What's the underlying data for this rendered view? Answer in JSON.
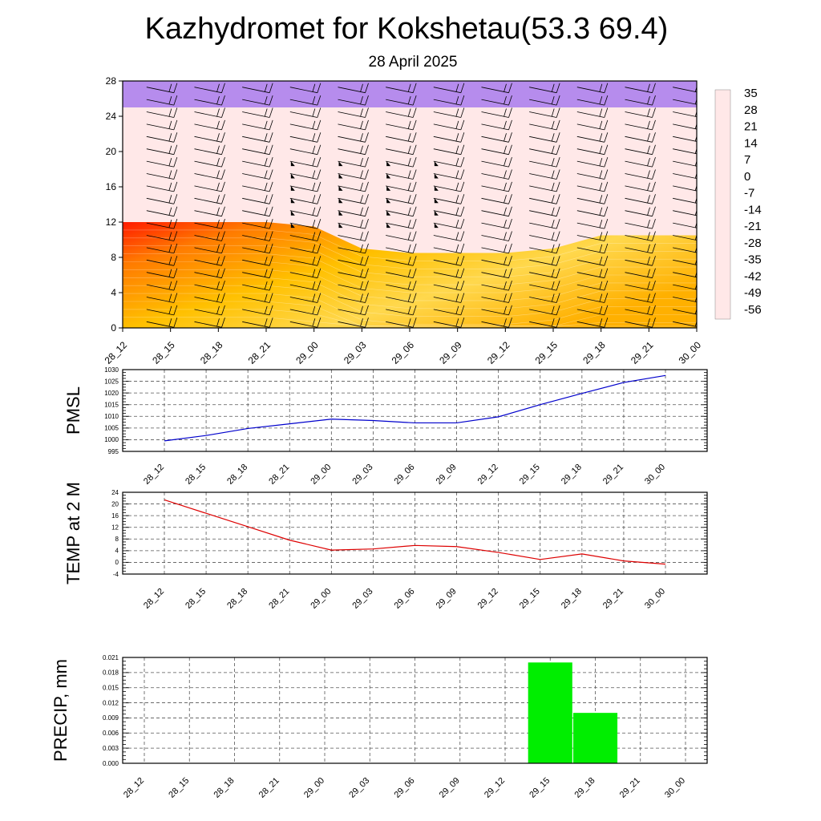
{
  "header": {
    "title": "Kazhydromet for Kokshetau(53.3 69.4)",
    "subtitle": "28 April 2025"
  },
  "time_labels": [
    "28_12",
    "28_15",
    "28_18",
    "28_21",
    "29_00",
    "29_03",
    "29_06",
    "29_09",
    "29_12",
    "29_15",
    "29_18",
    "29_21",
    "30_00"
  ],
  "colors": {
    "pmsl_line": "#0000cc",
    "temp_line": "#dd0000",
    "precip_bar": "#00ee00",
    "grid": "#555555"
  },
  "chart_data": [
    {
      "type": "heatmap",
      "name": "cross-section",
      "y_ticks": [
        "0",
        "4",
        "8",
        "12",
        "16",
        "20",
        "24",
        "28"
      ],
      "ylim": [
        0,
        28
      ],
      "x": [
        "28_12",
        "28_15",
        "28_18",
        "28_21",
        "29_00",
        "29_03",
        "29_06",
        "29_09",
        "29_12",
        "29_15",
        "29_18",
        "29_21",
        "30_00"
      ],
      "freezing_level": [
        12,
        12,
        12,
        12,
        11.5,
        9,
        8.5,
        8.5,
        8.5,
        9,
        10.5,
        10.5,
        10.5
      ],
      "colorbar_labels": [
        "35",
        "28",
        "21",
        "14",
        "7",
        "0",
        "-7",
        "-14",
        "-21",
        "-28",
        "-35",
        "-42",
        "-49",
        "-56"
      ],
      "colorbar_range": [
        -63,
        42
      ]
    },
    {
      "type": "line",
      "ylabel": "PMSL",
      "x": [
        "28_12",
        "28_15",
        "28_18",
        "28_21",
        "29_00",
        "29_03",
        "29_06",
        "29_09",
        "29_12",
        "29_15",
        "29_18",
        "29_21",
        "30_00"
      ],
      "values": [
        999.5,
        1001.8,
        1004.8,
        1006.8,
        1008.8,
        1008.2,
        1007.2,
        1007.2,
        1009.8,
        1015.0,
        1019.8,
        1024.5,
        1027.5
      ],
      "y_ticks": [
        "995",
        "1000",
        "1005",
        "1010",
        "1015",
        "1020",
        "1025",
        "1030"
      ],
      "ylim": [
        995,
        1030
      ]
    },
    {
      "type": "line",
      "ylabel": "TEMP at 2 M",
      "x": [
        "28_12",
        "28_15",
        "28_18",
        "28_21",
        "29_00",
        "29_03",
        "29_06",
        "29_09",
        "29_12",
        "29_15",
        "29_18",
        "29_21",
        "30_00"
      ],
      "values": [
        21.4,
        16.8,
        12.2,
        7.6,
        4.2,
        4.6,
        5.8,
        5.4,
        3.4,
        1.0,
        2.9,
        0.5,
        -0.6
      ],
      "y_ticks": [
        "-4",
        "0",
        "4",
        "8",
        "12",
        "16",
        "20",
        "24"
      ],
      "ylim": [
        -4,
        24
      ]
    },
    {
      "type": "bar",
      "ylabel": "PRECIP, mm",
      "categories": [
        "28_12",
        "28_15",
        "28_18",
        "28_21",
        "29_00",
        "29_03",
        "29_06",
        "29_09",
        "29_12",
        "29_15",
        "29_18",
        "29_21",
        "30_00"
      ],
      "values": [
        0,
        0,
        0,
        0,
        0,
        0,
        0,
        0,
        0,
        0.02,
        0.01,
        0,
        0
      ],
      "y_ticks": [
        "0.000",
        "0.003",
        "0.006",
        "0.009",
        "0.012",
        "0.015",
        "0.018",
        "0.021"
      ],
      "ylim": [
        0,
        0.021
      ]
    }
  ]
}
